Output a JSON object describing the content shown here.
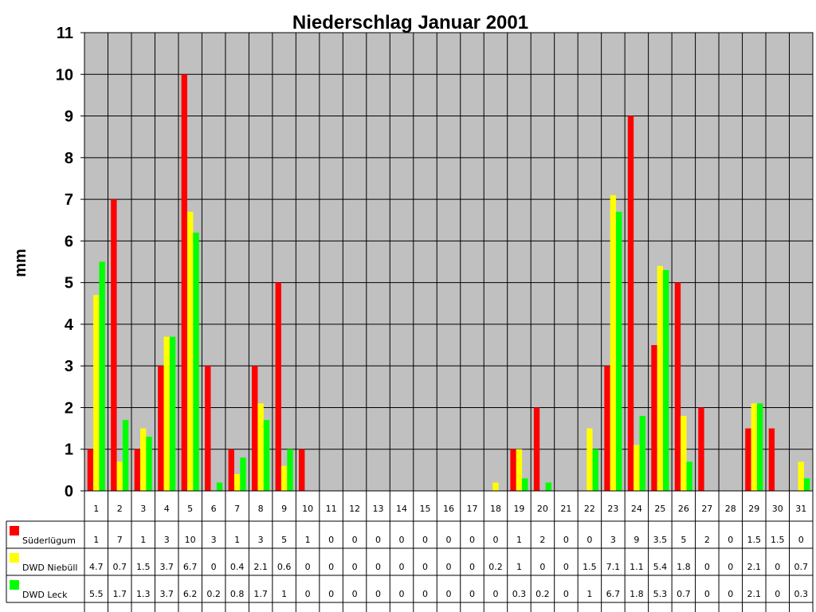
{
  "chart_data": {
    "type": "bar",
    "title": "Niederschlag Januar 2001",
    "xlabel": "",
    "ylabel": "mm",
    "ylim": [
      0,
      11
    ],
    "yticks": [
      0,
      1,
      2,
      3,
      4,
      5,
      6,
      7,
      8,
      9,
      10,
      11
    ],
    "grid": true,
    "legend_position": "data table, left of rows",
    "categories": [
      "1",
      "2",
      "3",
      "4",
      "5",
      "6",
      "7",
      "8",
      "9",
      "10",
      "11",
      "12",
      "13",
      "14",
      "15",
      "16",
      "17",
      "18",
      "19",
      "20",
      "21",
      "22",
      "23",
      "24",
      "25",
      "26",
      "27",
      "28",
      "29",
      "30",
      "31"
    ],
    "series": [
      {
        "name": "Süderlügum",
        "color": "#ff0000",
        "values": [
          1,
          7,
          1,
          3,
          10,
          3,
          1,
          3,
          5,
          1,
          0,
          0,
          0,
          0,
          0,
          0,
          0,
          0,
          1,
          2,
          0,
          0,
          3,
          9,
          3.5,
          5,
          2,
          0,
          1.5,
          1.5,
          0
        ]
      },
      {
        "name": "DWD Niebüll",
        "color": "#ffff00",
        "values": [
          4.7,
          0.7,
          1.5,
          3.7,
          6.7,
          0,
          0.4,
          2.1,
          0.6,
          0,
          0,
          0,
          0,
          0,
          0,
          0,
          0,
          0.2,
          1,
          0,
          0,
          1.5,
          7.1,
          1.1,
          5.4,
          1.8,
          0,
          0,
          2.1,
          0,
          0.7
        ]
      },
      {
        "name": "DWD Leck",
        "color": "#00ff00",
        "values": [
          5.5,
          1.7,
          1.3,
          3.7,
          6.2,
          0.2,
          0.8,
          1.7,
          1,
          0,
          0,
          0,
          0,
          0,
          0,
          0,
          0,
          0,
          0.3,
          0.2,
          0,
          1,
          6.7,
          1.8,
          5.3,
          0.7,
          0,
          0,
          2.1,
          0,
          0.3
        ]
      }
    ],
    "plot_background": "#c0c0c0"
  }
}
